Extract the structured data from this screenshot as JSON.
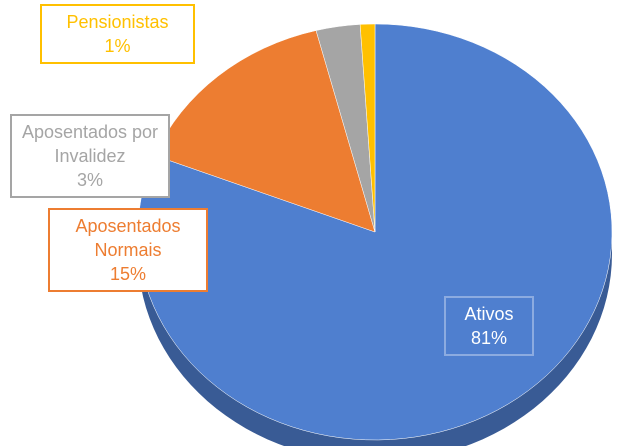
{
  "chart_data": {
    "type": "pie",
    "categories": [
      "Ativos",
      "Aposentados Normais",
      "Aposentados por Invalidez",
      "Pensionistas"
    ],
    "values": [
      81,
      15,
      3,
      1
    ],
    "value_labels": [
      "81%",
      "15%",
      "3%",
      "1%"
    ],
    "colors": [
      "#4f7fcf",
      "#ed7d31",
      "#a5a5a5",
      "#ffc000"
    ]
  }
}
